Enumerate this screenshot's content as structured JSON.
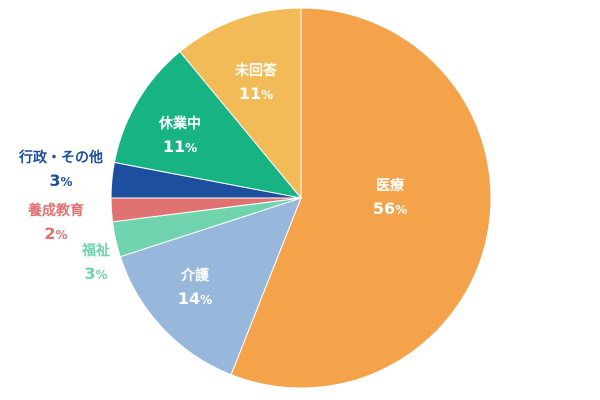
{
  "chart_data": {
    "type": "pie",
    "title": "",
    "start_angle_deg": 0,
    "direction": "clockwise",
    "slices": [
      {
        "label": "医療",
        "value": 56,
        "display": "56",
        "color": "#f5a34b",
        "label_color": "#ffffff",
        "label_position": "inside"
      },
      {
        "label": "介護",
        "value": 14,
        "display": "14",
        "color": "#97b7db",
        "label_color": "#ffffff",
        "label_position": "inside"
      },
      {
        "label": "福祉",
        "value": 3,
        "display": "3",
        "color": "#6fd4ad",
        "label_color": "#6fd4ad",
        "label_position": "outside"
      },
      {
        "label": "養成教育",
        "value": 2,
        "display": "2",
        "color": "#e07272",
        "label_color": "#e07272",
        "label_position": "outside"
      },
      {
        "label": "行政・その他",
        "value": 3,
        "display": "3",
        "color": "#1d4f9e",
        "label_color": "#1d4f9e",
        "label_position": "outside"
      },
      {
        "label": "休業中",
        "value": 11,
        "display": "11",
        "color": "#17b383",
        "label_color": "#ffffff",
        "label_position": "inside"
      },
      {
        "label": "未回答",
        "value": 11,
        "display": "11",
        "color": "#f2bb57",
        "label_color": "#ffffff",
        "label_position": "inside"
      }
    ],
    "unit": "%"
  }
}
